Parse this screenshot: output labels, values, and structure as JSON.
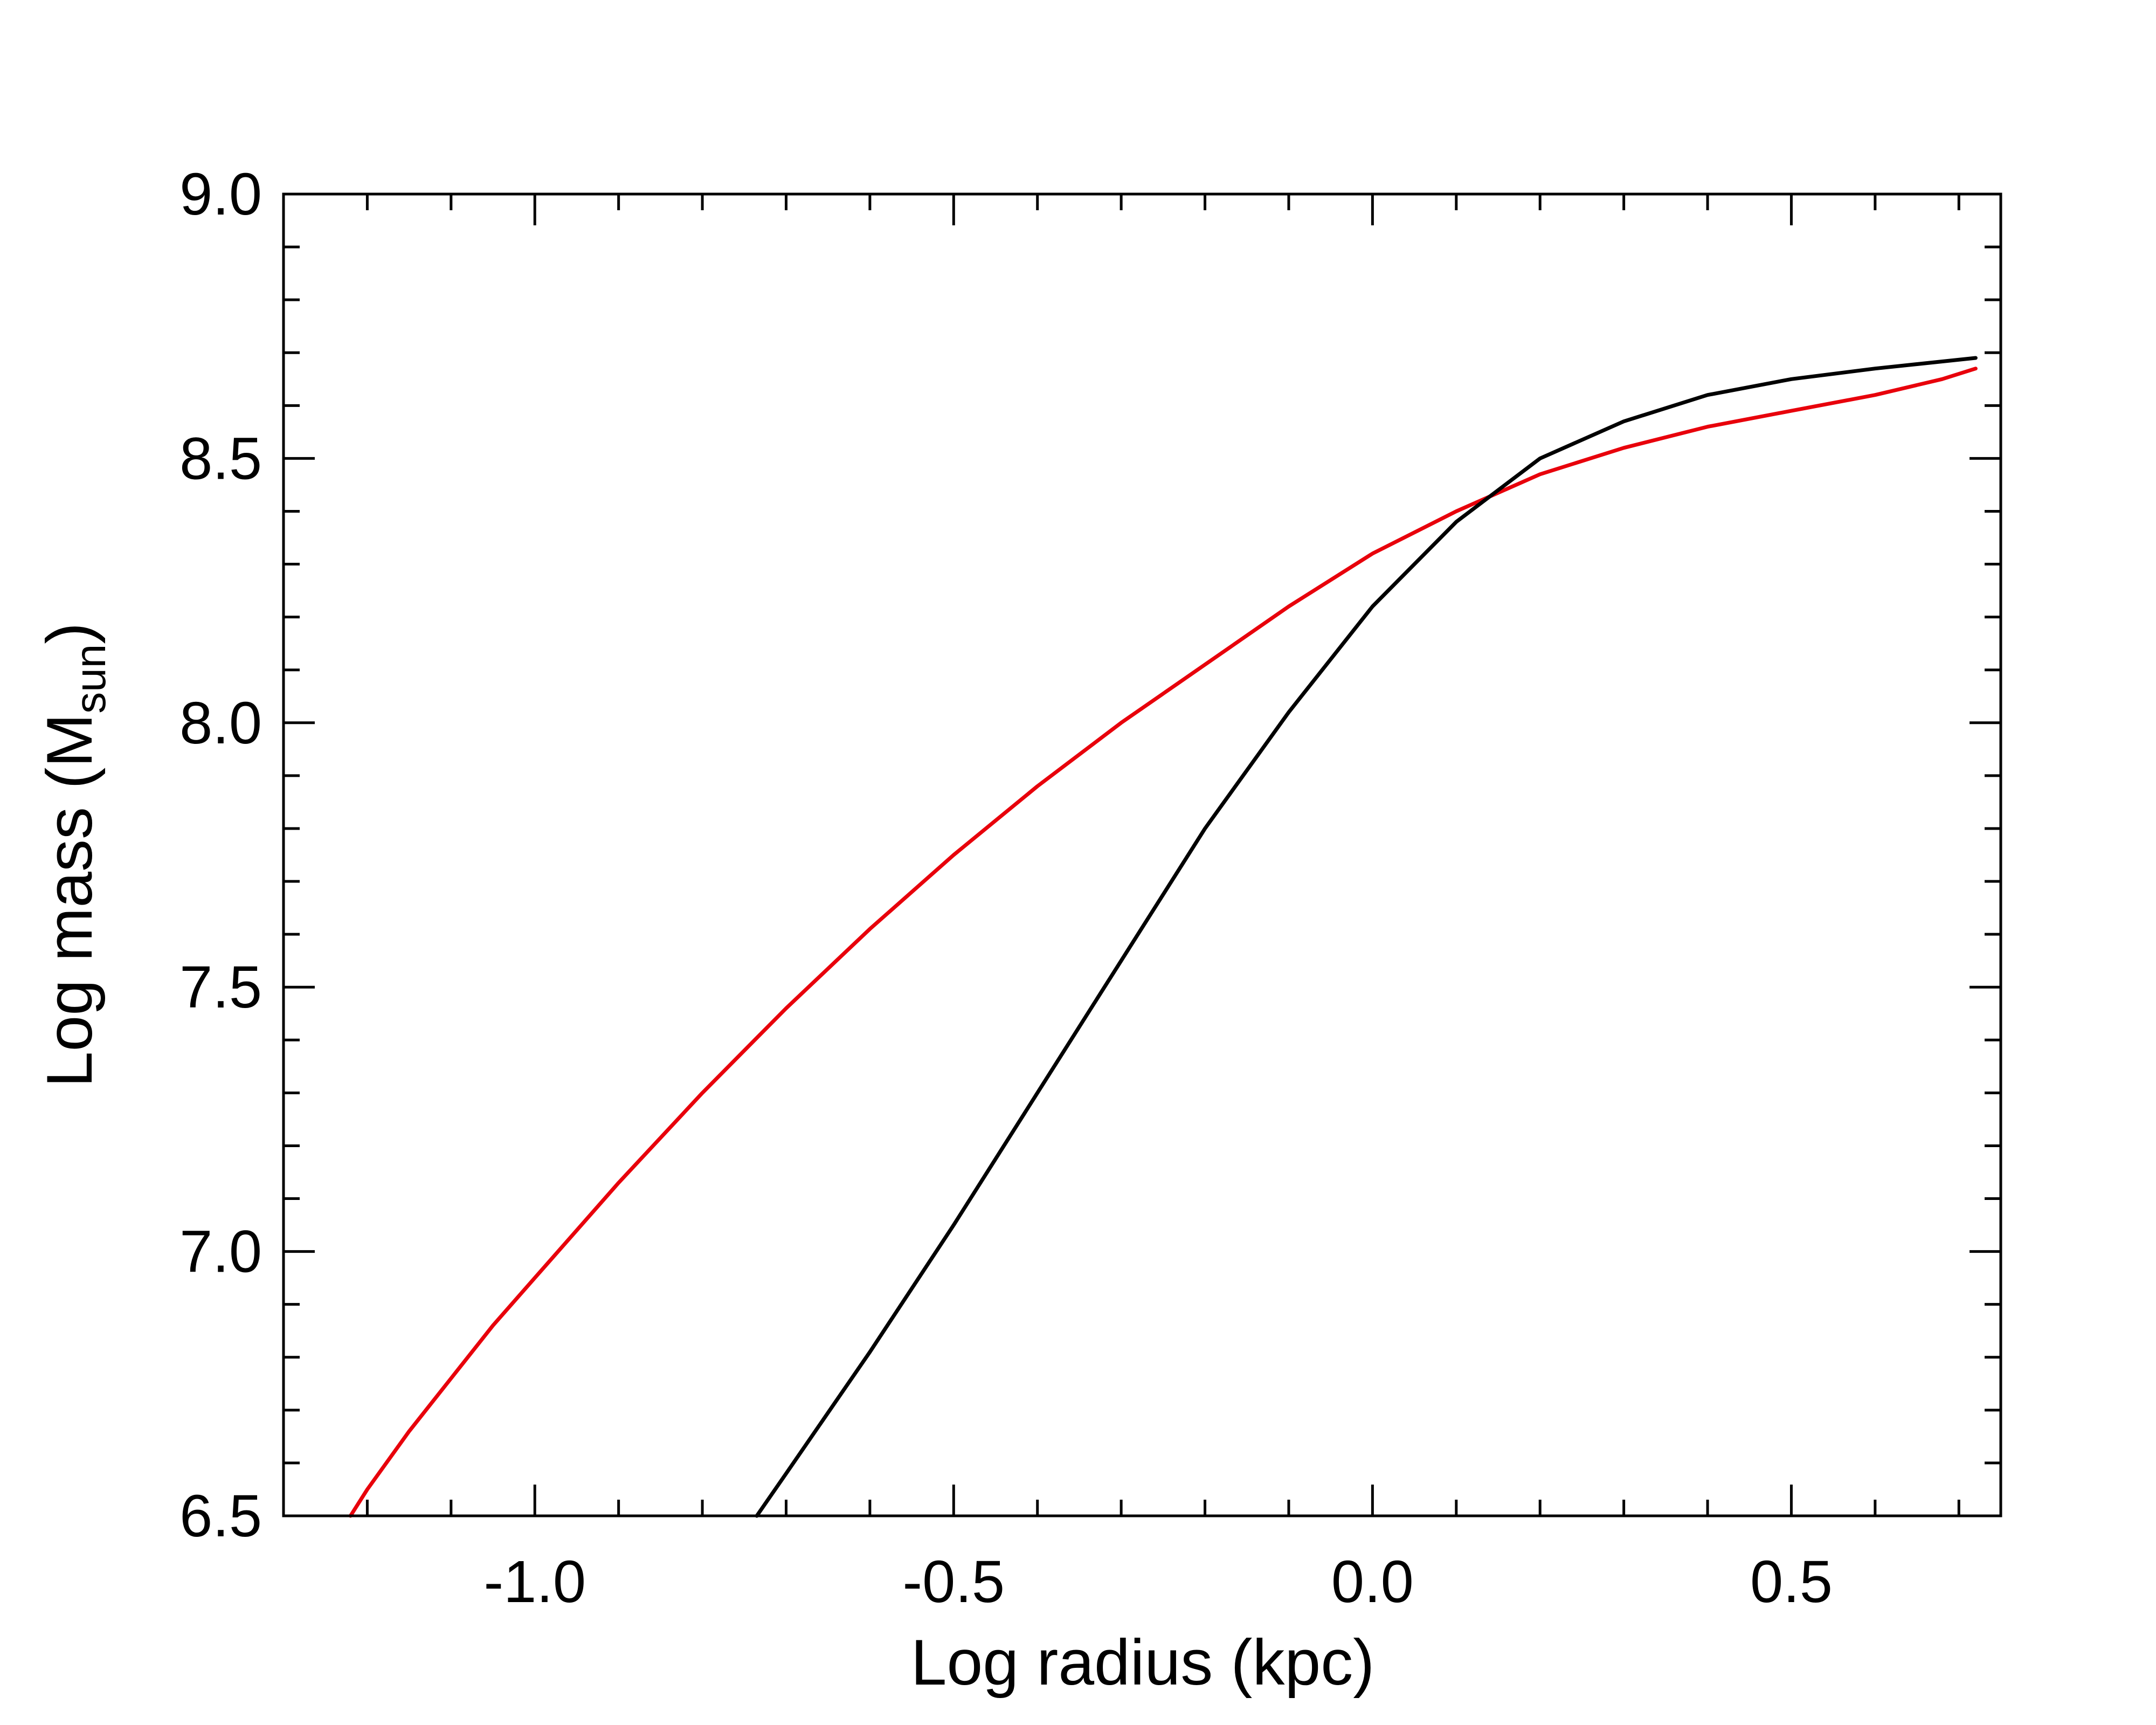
{
  "chart_data": {
    "type": "line",
    "xlabel": "Log radius (kpc)",
    "ylabel": {
      "prefix": "Log mass (M",
      "subscript": "sun",
      "suffix": ")"
    },
    "xlim": [
      -1.3,
      0.75
    ],
    "ylim": [
      6.5,
      9.0
    ],
    "x_ticks": [
      {
        "value": -1.0,
        "label": "-1.0"
      },
      {
        "value": -0.5,
        "label": "-0.5"
      },
      {
        "value": 0.0,
        "label": "0.0"
      },
      {
        "value": 0.5,
        "label": "0.5"
      }
    ],
    "x_minor_step": 0.1,
    "y_ticks": [
      {
        "value": 6.5,
        "label": "6.5"
      },
      {
        "value": 7.0,
        "label": "7.0"
      },
      {
        "value": 7.5,
        "label": "7.5"
      },
      {
        "value": 8.0,
        "label": "8.0"
      },
      {
        "value": 8.5,
        "label": "8.5"
      },
      {
        "value": 9.0,
        "label": "9.0"
      }
    ],
    "y_minor_step": 0.1,
    "grid": false,
    "series": [
      {
        "color": "#e8000b",
        "x": [
          -1.22,
          -1.2,
          -1.15,
          -1.1,
          -1.05,
          -1.0,
          -0.9,
          -0.8,
          -0.7,
          -0.6,
          -0.5,
          -0.4,
          -0.3,
          -0.2,
          -0.1,
          0.0,
          0.1,
          0.2,
          0.3,
          0.4,
          0.5,
          0.6,
          0.68,
          0.72
        ],
        "y": [
          6.5,
          6.55,
          6.66,
          6.76,
          6.86,
          6.95,
          7.13,
          7.3,
          7.46,
          7.61,
          7.75,
          7.88,
          8.0,
          8.11,
          8.22,
          8.32,
          8.4,
          8.47,
          8.52,
          8.56,
          8.59,
          8.62,
          8.65,
          8.67
        ]
      },
      {
        "color": "#000000",
        "x": [
          -0.735,
          -0.7,
          -0.6,
          -0.5,
          -0.4,
          -0.3,
          -0.2,
          -0.1,
          0.0,
          0.1,
          0.2,
          0.3,
          0.4,
          0.5,
          0.6,
          0.72
        ],
        "y": [
          6.5,
          6.58,
          6.81,
          7.05,
          7.3,
          7.55,
          7.8,
          8.02,
          8.22,
          8.38,
          8.5,
          8.57,
          8.62,
          8.65,
          8.67,
          8.69
        ]
      }
    ]
  }
}
